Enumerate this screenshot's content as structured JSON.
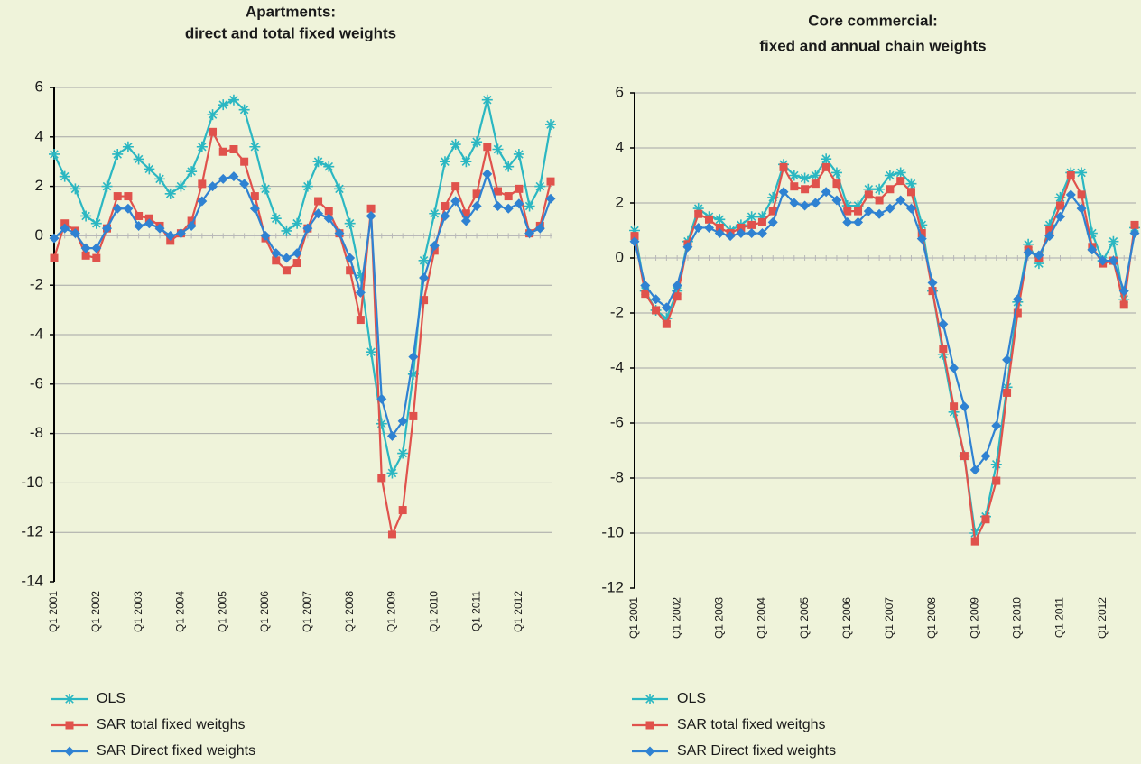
{
  "chart_data": [
    {
      "type": "line",
      "title": "Apartments:",
      "subtitle": "direct and total fixed weights",
      "categories": [
        "Q1 2001",
        null,
        null,
        null,
        "Q1 2002",
        null,
        null,
        null,
        "Q1 2003",
        null,
        null,
        null,
        "Q1 2004",
        null,
        null,
        null,
        "Q1 2005",
        null,
        null,
        null,
        "Q1 2006",
        null,
        null,
        null,
        "Q1 2007",
        null,
        null,
        null,
        "Q1 2008",
        null,
        null,
        null,
        "Q1 2009",
        null,
        null,
        null,
        "Q1 2010",
        null,
        null,
        null,
        "Q1 2011",
        null,
        null,
        null,
        "Q1 2012",
        null,
        null,
        null
      ],
      "series": [
        {
          "name": "OLS",
          "color": "#2bb7c2",
          "marker": "asterisk",
          "values": [
            3.3,
            2.4,
            1.9,
            0.8,
            0.5,
            2.0,
            3.3,
            3.6,
            3.1,
            2.7,
            2.3,
            1.7,
            2.0,
            2.6,
            3.6,
            4.9,
            5.3,
            5.5,
            5.1,
            3.6,
            1.9,
            0.7,
            0.2,
            0.5,
            2.0,
            3.0,
            2.8,
            1.9,
            0.5,
            -1.6,
            -4.7,
            -7.6,
            -9.6,
            -8.8,
            -5.6,
            -1.0,
            0.9,
            3.0,
            3.7,
            3.0,
            3.8,
            5.5,
            3.5,
            2.8,
            3.3,
            1.2,
            2.0,
            4.5
          ]
        },
        {
          "name": "SAR total fixed weitghs",
          "color": "#e0524c",
          "marker": "square",
          "values": [
            -0.9,
            0.5,
            0.2,
            -0.8,
            -0.9,
            0.3,
            1.6,
            1.6,
            0.8,
            0.7,
            0.4,
            -0.2,
            0.1,
            0.6,
            2.1,
            4.2,
            3.4,
            3.5,
            3.0,
            1.6,
            -0.1,
            -1.0,
            -1.4,
            -1.1,
            0.3,
            1.4,
            1.0,
            0.1,
            -1.4,
            -3.4,
            1.1,
            -9.8,
            -12.1,
            -11.1,
            -7.3,
            -2.6,
            -0.6,
            1.2,
            2.0,
            0.9,
            1.7,
            3.6,
            1.8,
            1.6,
            1.9,
            0.1,
            0.4,
            2.2
          ]
        },
        {
          "name": "SAR Direct fixed weights",
          "color": "#2f82d2",
          "marker": "diamond",
          "values": [
            -0.1,
            0.3,
            0.1,
            -0.5,
            -0.5,
            0.3,
            1.1,
            1.1,
            0.4,
            0.5,
            0.3,
            0.0,
            0.1,
            0.4,
            1.4,
            2.0,
            2.3,
            2.4,
            2.1,
            1.1,
            0.0,
            -0.7,
            -0.9,
            -0.7,
            0.3,
            0.9,
            0.7,
            0.1,
            -0.9,
            -2.3,
            0.8,
            -6.6,
            -8.1,
            -7.5,
            -4.9,
            -1.7,
            -0.4,
            0.8,
            1.4,
            0.6,
            1.2,
            2.5,
            1.2,
            1.1,
            1.3,
            0.1,
            0.3,
            1.5
          ]
        }
      ],
      "ylim": [
        -14,
        6
      ],
      "yticks": [
        -14,
        -12,
        -10,
        -8,
        -6,
        -4,
        -2,
        0,
        2,
        4,
        6
      ],
      "grid": true,
      "legend": "bottom-left"
    },
    {
      "type": "line",
      "title": "Core commercial:",
      "subtitle": "fixed and annual chain weights",
      "categories": [
        "Q1 2001",
        null,
        null,
        null,
        "Q1 2002",
        null,
        null,
        null,
        "Q1 2003",
        null,
        null,
        null,
        "Q1 2004",
        null,
        null,
        null,
        "Q1 2005",
        null,
        null,
        null,
        "Q1 2006",
        null,
        null,
        null,
        "Q1 2007",
        null,
        null,
        null,
        "Q1 2008",
        null,
        null,
        null,
        "Q1 2009",
        null,
        null,
        null,
        "Q1 2010",
        null,
        null,
        null,
        "Q1 2011",
        null,
        null,
        null,
        "Q1 2012",
        null,
        null,
        null
      ],
      "series": [
        {
          "name": "OLS",
          "color": "#2bb7c2",
          "marker": "asterisk",
          "values": [
            1.0,
            -1.2,
            -1.9,
            -2.2,
            -1.2,
            0.6,
            1.8,
            1.5,
            1.4,
            1.0,
            1.2,
            1.5,
            1.5,
            2.2,
            3.4,
            3.0,
            2.9,
            3.0,
            3.6,
            3.1,
            1.9,
            1.9,
            2.5,
            2.5,
            3.0,
            3.1,
            2.7,
            1.2,
            -1.2,
            -3.5,
            -5.6,
            -7.2,
            -10.0,
            -9.4,
            -7.5,
            -4.7,
            -1.6,
            0.5,
            -0.2,
            1.2,
            2.2,
            3.1,
            3.1,
            0.9,
            -0.1,
            0.6,
            -1.5,
            1.1
          ]
        },
        {
          "name": "SAR total fixed weitghs",
          "color": "#e0524c",
          "marker": "square",
          "values": [
            0.8,
            -1.3,
            -1.9,
            -2.4,
            -1.4,
            0.5,
            1.6,
            1.4,
            1.1,
            0.9,
            1.1,
            1.2,
            1.3,
            1.7,
            3.3,
            2.6,
            2.5,
            2.7,
            3.3,
            2.7,
            1.7,
            1.7,
            2.3,
            2.1,
            2.5,
            2.8,
            2.4,
            0.9,
            -1.2,
            -3.3,
            -5.4,
            -7.2,
            -10.3,
            -9.5,
            -8.1,
            -4.9,
            -2.0,
            0.3,
            0.0,
            1.0,
            1.9,
            3.0,
            2.3,
            0.4,
            -0.2,
            -0.1,
            -1.7,
            1.2
          ]
        },
        {
          "name": "SAR Direct fixed weights",
          "color": "#2f82d2",
          "marker": "diamond",
          "values": [
            0.6,
            -1.0,
            -1.5,
            -1.8,
            -1.0,
            0.4,
            1.1,
            1.1,
            0.9,
            0.8,
            0.9,
            0.9,
            0.9,
            1.3,
            2.4,
            2.0,
            1.9,
            2.0,
            2.4,
            2.1,
            1.3,
            1.3,
            1.7,
            1.6,
            1.8,
            2.1,
            1.8,
            0.7,
            -0.9,
            -2.4,
            -4.0,
            -5.4,
            -7.7,
            -7.2,
            -6.1,
            -3.7,
            -1.5,
            0.2,
            0.1,
            0.8,
            1.5,
            2.3,
            1.8,
            0.3,
            -0.1,
            -0.1,
            -1.2,
            0.9
          ]
        }
      ],
      "ylim": [
        -12,
        6
      ],
      "yticks": [
        -12,
        -10,
        -8,
        -6,
        -4,
        -2,
        0,
        2,
        4,
        6
      ],
      "grid": true,
      "legend": "bottom-left"
    }
  ]
}
